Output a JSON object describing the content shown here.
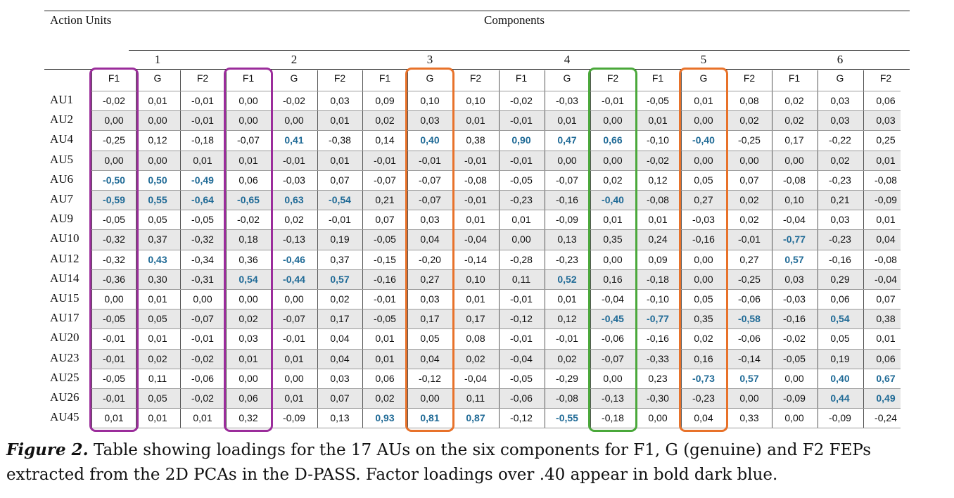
{
  "table": {
    "row_header_label": "Action Units",
    "group_header_label": "Components",
    "components": [
      "1",
      "2",
      "3",
      "4",
      "5",
      "6"
    ],
    "sub_headers": [
      "F1",
      "G",
      "F2",
      "F1",
      "G",
      "F2",
      "F1",
      "G",
      "F2",
      "F1",
      "G",
      "F2",
      "F1",
      "G",
      "F2",
      "F1",
      "G",
      "F2"
    ],
    "rows": [
      {
        "label": "AU1",
        "values": [
          "-0,02",
          "0,01",
          "-0,01",
          "0,00",
          "-0,02",
          "0,03",
          "0,09",
          "0,10",
          "0,10",
          "-0,02",
          "-0,03",
          "-0,01",
          "-0,05",
          "0,01",
          "0,08",
          "0,02",
          "0,03",
          "0,06"
        ],
        "bold": []
      },
      {
        "label": "AU2",
        "values": [
          "0,00",
          "0,00",
          "-0,01",
          "0,00",
          "0,00",
          "0,01",
          "0,02",
          "0,03",
          "0,01",
          "-0,01",
          "0,01",
          "0,00",
          "0,01",
          "0,00",
          "0,02",
          "0,02",
          "0,03",
          "0,03"
        ],
        "bold": []
      },
      {
        "label": "AU4",
        "values": [
          "-0,25",
          "0,12",
          "-0,18",
          "-0,07",
          "0,41",
          "-0,38",
          "0,14",
          "0,40",
          "0,38",
          "0,90",
          "0,47",
          "0,66",
          "-0,10",
          "-0,40",
          "-0,25",
          "0,17",
          "-0,22",
          "0,25"
        ],
        "bold": [
          4,
          7,
          9,
          10,
          11,
          13
        ]
      },
      {
        "label": "AU5",
        "values": [
          "0,00",
          "0,00",
          "0,01",
          "0,01",
          "-0,01",
          "0,01",
          "-0,01",
          "-0,01",
          "-0,01",
          "-0,01",
          "0,00",
          "0,00",
          "-0,02",
          "0,00",
          "0,00",
          "0,00",
          "0,02",
          "0,01"
        ],
        "bold": []
      },
      {
        "label": "AU6",
        "values": [
          "-0,50",
          "0,50",
          "-0,49",
          "0,06",
          "-0,03",
          "0,07",
          "-0,07",
          "-0,07",
          "-0,08",
          "-0,05",
          "-0,07",
          "0,02",
          "0,12",
          "0,05",
          "0,07",
          "-0,08",
          "-0,23",
          "-0,08"
        ],
        "bold": [
          0,
          1,
          2
        ]
      },
      {
        "label": "AU7",
        "values": [
          "-0,59",
          "0,55",
          "-0,64",
          "-0,65",
          "0,63",
          "-0,54",
          "0,21",
          "-0,07",
          "-0,01",
          "-0,23",
          "-0,16",
          "-0,40",
          "-0,08",
          "0,27",
          "0,02",
          "0,10",
          "0,21",
          "-0,09"
        ],
        "bold": [
          0,
          1,
          2,
          3,
          4,
          5,
          11
        ]
      },
      {
        "label": "AU9",
        "values": [
          "-0,05",
          "0,05",
          "-0,05",
          "-0,02",
          "0,02",
          "-0,01",
          "0,07",
          "0,03",
          "0,01",
          "0,01",
          "-0,09",
          "0,01",
          "0,01",
          "-0,03",
          "0,02",
          "-0,04",
          "0,03",
          "0,01"
        ],
        "bold": []
      },
      {
        "label": "AU10",
        "values": [
          "-0,32",
          "0,37",
          "-0,32",
          "0,18",
          "-0,13",
          "0,19",
          "-0,05",
          "0,04",
          "-0,04",
          "0,00",
          "0,13",
          "0,35",
          "0,24",
          "-0,16",
          "-0,01",
          "-0,77",
          "-0,23",
          "0,04"
        ],
        "bold": [
          15
        ]
      },
      {
        "label": "AU12",
        "values": [
          "-0,32",
          "0,43",
          "-0,34",
          "0,36",
          "-0,46",
          "0,37",
          "-0,15",
          "-0,20",
          "-0,14",
          "-0,28",
          "-0,23",
          "0,00",
          "0,09",
          "0,00",
          "0,27",
          "0,57",
          "-0,16",
          "-0,08"
        ],
        "bold": [
          1,
          4,
          15
        ]
      },
      {
        "label": "AU14",
        "values": [
          "-0,36",
          "0,30",
          "-0,31",
          "0,54",
          "-0,44",
          "0,57",
          "-0,16",
          "0,27",
          "0,10",
          "0,11",
          "0,52",
          "0,16",
          "-0,18",
          "0,00",
          "-0,25",
          "0,03",
          "0,29",
          "-0,04"
        ],
        "bold": [
          3,
          4,
          5,
          10
        ]
      },
      {
        "label": "AU15",
        "values": [
          "0,00",
          "0,01",
          "0,00",
          "0,00",
          "0,00",
          "0,02",
          "-0,01",
          "0,03",
          "0,01",
          "-0,01",
          "0,01",
          "-0,04",
          "-0,10",
          "0,05",
          "-0,06",
          "-0,03",
          "0,06",
          "0,07"
        ],
        "bold": []
      },
      {
        "label": "AU17",
        "values": [
          "-0,05",
          "0,05",
          "-0,07",
          "0,02",
          "-0,07",
          "0,17",
          "-0,05",
          "0,17",
          "0,17",
          "-0,12",
          "0,12",
          "-0,45",
          "-0,77",
          "0,35",
          "-0,58",
          "-0,16",
          "0,54",
          "0,38"
        ],
        "bold": [
          11,
          12,
          14,
          16
        ]
      },
      {
        "label": "AU20",
        "values": [
          "-0,01",
          "0,01",
          "-0,01",
          "0,03",
          "-0,01",
          "0,04",
          "0,01",
          "0,05",
          "0,08",
          "-0,01",
          "-0,01",
          "-0,06",
          "-0,16",
          "0,02",
          "-0,06",
          "-0,02",
          "0,05",
          "0,01"
        ],
        "bold": []
      },
      {
        "label": "AU23",
        "values": [
          "-0,01",
          "0,02",
          "-0,02",
          "0,01",
          "0,01",
          "0,04",
          "0,01",
          "0,04",
          "0,02",
          "-0,04",
          "0,02",
          "-0,07",
          "-0,33",
          "0,16",
          "-0,14",
          "-0,05",
          "0,19",
          "0,06"
        ],
        "bold": []
      },
      {
        "label": "AU25",
        "values": [
          "-0,05",
          "0,11",
          "-0,06",
          "0,00",
          "0,00",
          "0,03",
          "0,06",
          "-0,12",
          "-0,04",
          "-0,05",
          "-0,29",
          "0,00",
          "0,23",
          "-0,73",
          "0,57",
          "0,00",
          "0,40",
          "0,67"
        ],
        "bold": [
          13,
          14,
          16,
          17
        ]
      },
      {
        "label": "AU26",
        "values": [
          "-0,01",
          "0,05",
          "-0,02",
          "0,06",
          "0,01",
          "0,07",
          "0,02",
          "0,00",
          "0,11",
          "-0,06",
          "-0,08",
          "-0,13",
          "-0,30",
          "-0,23",
          "0,00",
          "-0,09",
          "0,44",
          "0,49"
        ],
        "bold": [
          16,
          17
        ]
      },
      {
        "label": "AU45",
        "values": [
          "0,01",
          "0,01",
          "0,01",
          "0,32",
          "-0,09",
          "0,13",
          "0,93",
          "0,81",
          "0,87",
          "-0,12",
          "-0,55",
          "-0,18",
          "0,00",
          "0,04",
          "0,33",
          "0,00",
          "-0,09",
          "-0,24"
        ],
        "bold": [
          6,
          7,
          8,
          10
        ]
      }
    ],
    "highlight_boxes": [
      {
        "column": 0,
        "color": "#9b2d9b"
      },
      {
        "column": 3,
        "color": "#9b2d9b"
      },
      {
        "column": 7,
        "color": "#e8722a"
      },
      {
        "column": 11,
        "color": "#4aa83a"
      },
      {
        "column": 13,
        "color": "#e8722a"
      }
    ],
    "colors": {
      "bold_value": "#1f6a96",
      "band": "#e8e8e8"
    }
  },
  "caption": {
    "label": "Figure 2.",
    "text": " Table showing loadings for the 17 AUs on the six components for F1, G (genuine) and F2 FEPs extracted from the 2D PCAs in the D-PASS. Factor loadings over .40 appear in bold dark blue."
  }
}
